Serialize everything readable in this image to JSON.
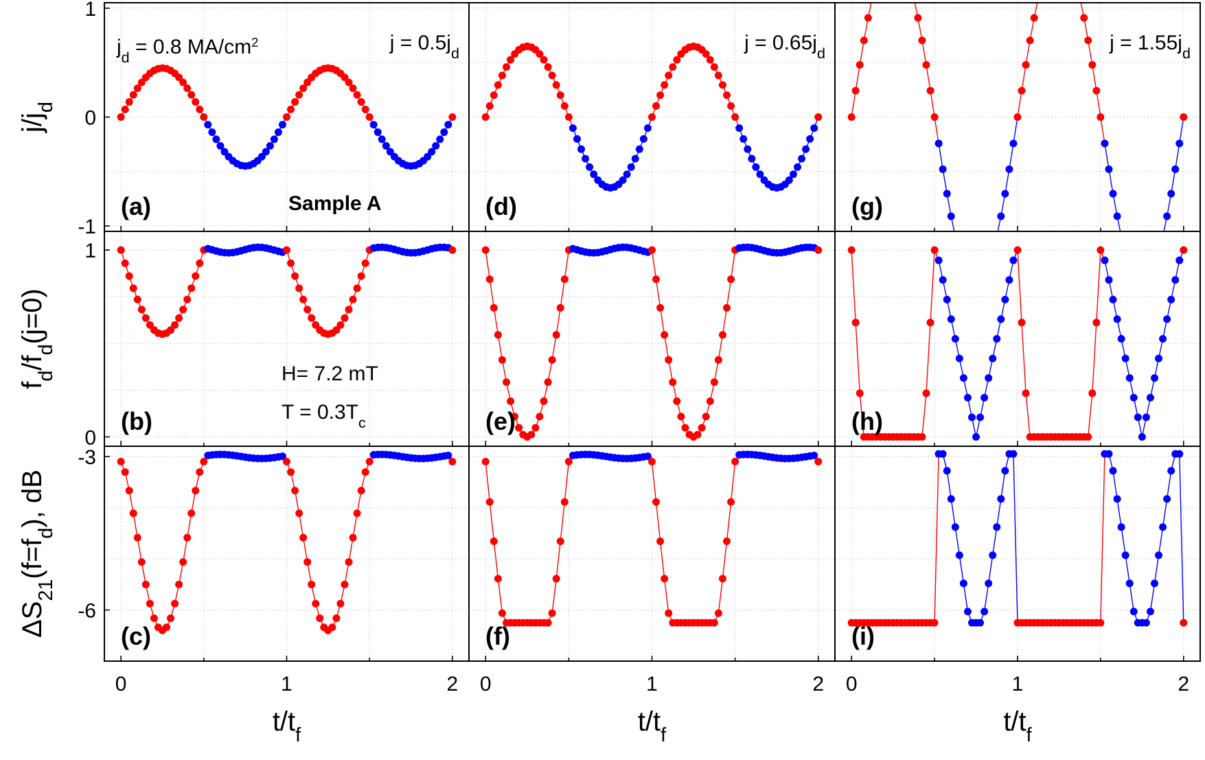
{
  "chart_data": {
    "type": "scatter",
    "layout": "3x3 grid, shared axes",
    "x_axis": {
      "label": "t/t",
      "label_sub": "f",
      "range": [
        -0.1,
        2.1
      ],
      "ticks": [
        0,
        1,
        2
      ],
      "tick_labels": [
        "0",
        "1",
        "2"
      ]
    },
    "rows": [
      {
        "id": "j",
        "ylabel": "j/j",
        "ylabel_sub": "d",
        "ylabel_tail": "",
        "range": [
          -1.05,
          1.05
        ],
        "ticks": [
          -1,
          0,
          1
        ],
        "tick_labels": [
          "-1",
          "0",
          "1"
        ]
      },
      {
        "id": "fd",
        "ylabel": "f",
        "ylabel_sub": "d",
        "ylabel_tail": "/f",
        "ylabel_sub2": "d",
        "ylabel_tail2": "(j=0)",
        "range": [
          -0.05,
          1.1
        ],
        "ticks": [
          0,
          1
        ],
        "tick_labels": [
          "0",
          "1"
        ]
      },
      {
        "id": "s21",
        "ylabel": "ΔS",
        "ylabel_sub": "21",
        "ylabel_tail": "(f=f",
        "ylabel_sub2": "d",
        "ylabel_tail2": "), dB",
        "range": [
          -7.0,
          -2.8
        ],
        "ticks": [
          -6,
          -3
        ],
        "tick_labels": [
          "-6",
          "-3"
        ]
      }
    ],
    "columns": [
      {
        "amplitude": 0.45,
        "label": "j = 0.5j",
        "label_sub": "d",
        "min_fd": 0.55,
        "dip_fd": "smooth",
        "saturates": false,
        "s21_floor": -6.4
      },
      {
        "amplitude": 0.65,
        "label": "j = 0.65j",
        "label_sub": "d",
        "min_fd": 0.0,
        "dip_fd": "smooth",
        "saturates": true,
        "sat_start": 0.43,
        "s21_floor": -6.25
      },
      {
        "amplitude": 1.55,
        "label": "j = 1.55j",
        "label_sub": "d",
        "min_fd": 0.0,
        "dip_fd": "triangular",
        "saturates": true,
        "s21_floor": -6.25
      }
    ],
    "series": [
      {
        "name": "positive half-period",
        "color": "#ff0000"
      },
      {
        "name": "negative half-period",
        "color": "#0000ff"
      }
    ],
    "panel_letters": [
      "(a)",
      "(b)",
      "(c)",
      "(d)",
      "(e)",
      "(f)",
      "(g)",
      "(h)",
      "(i)"
    ],
    "annotations": {
      "jd_label": "j",
      "jd_sub": "d",
      "jd_value": " = 0.8 MA/cm",
      "jd_sup": "2",
      "sample": "Sample A",
      "field": "H= 7.2 mT",
      "temperature": "T = 0.3T",
      "temperature_sub": "c"
    },
    "points_per_period": 40,
    "periods": 2
  }
}
